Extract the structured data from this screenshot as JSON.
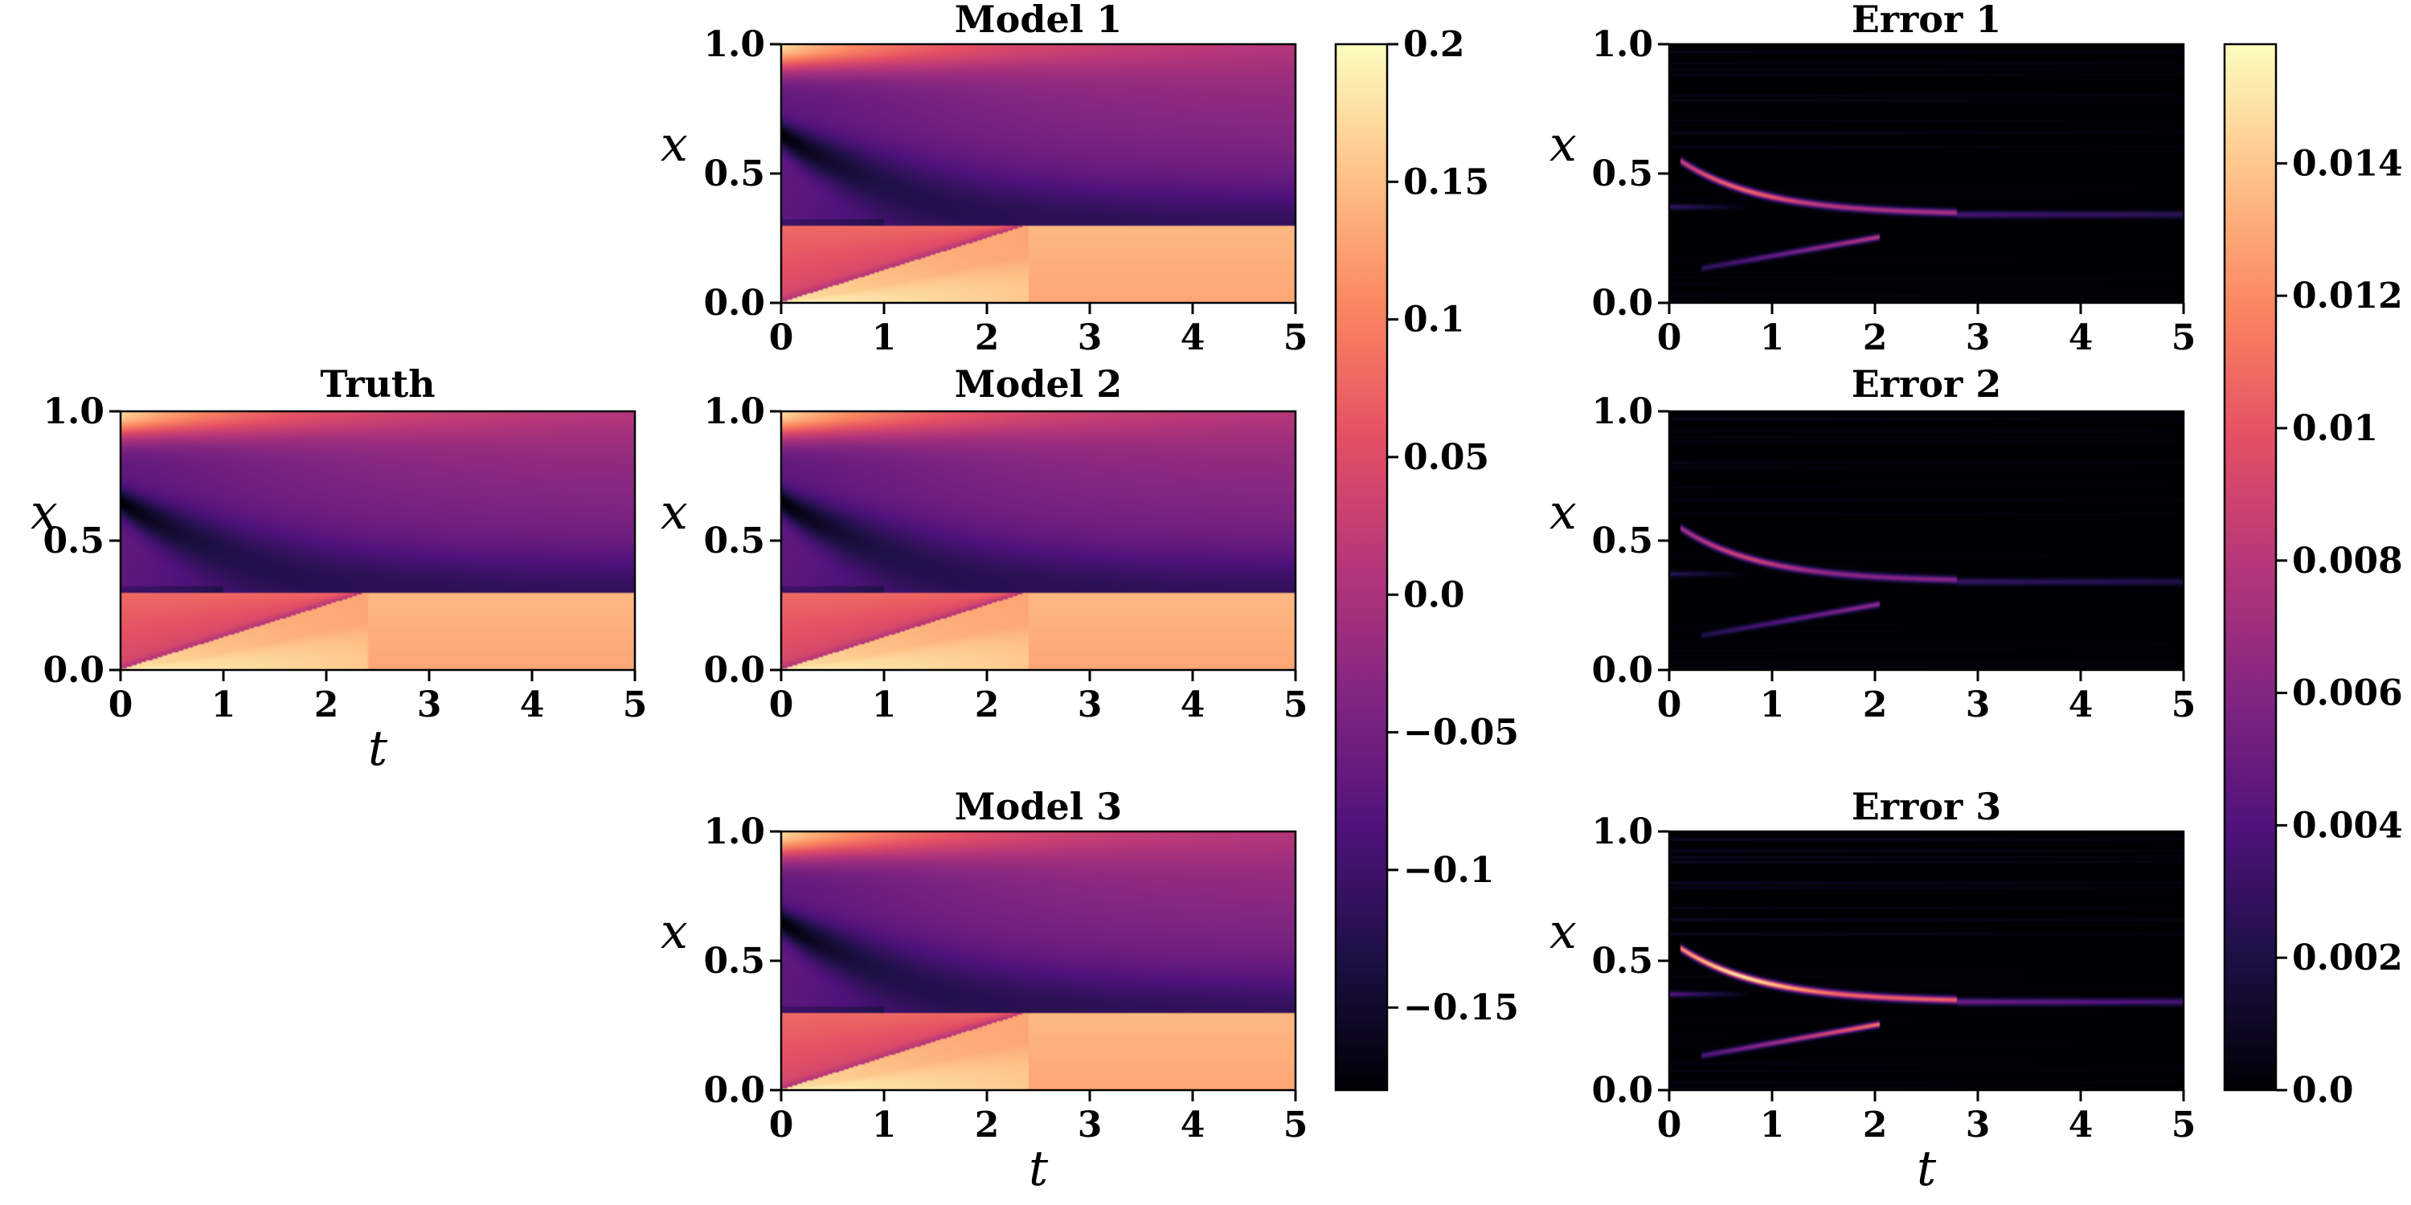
{
  "colors": {
    "magma": [
      "#000004",
      "#1c1044",
      "#4f127b",
      "#812581",
      "#b5367a",
      "#e55064",
      "#fb8761",
      "#fec287",
      "#fcfdbf"
    ]
  },
  "chart_data": {
    "type": "heatmap",
    "x_label": "t",
    "y_label": "x",
    "x_range": [
      0,
      5
    ],
    "y_range": [
      0.0,
      1.0
    ],
    "x_ticks": [
      "0",
      "1",
      "2",
      "3",
      "4",
      "5"
    ],
    "y_ticks": [
      "0.0",
      "0.5",
      "1.0"
    ],
    "colorbar_value": {
      "range": [
        -0.18,
        0.2
      ],
      "ticks": [
        0.2,
        0.15,
        0.1,
        0.05,
        0.0,
        -0.05,
        -0.1,
        -0.15
      ],
      "tick_labels": [
        "0.2",
        "0.15",
        "0.1",
        "0.05",
        "0.0",
        "−0.05",
        "−0.1",
        "−0.15"
      ]
    },
    "colorbar_error": {
      "range": [
        0.0,
        0.0158
      ],
      "ticks": [
        0.014,
        0.012,
        0.01,
        0.008,
        0.006,
        0.004,
        0.002,
        0.0
      ],
      "tick_labels": [
        "0.014",
        "0.012",
        "0.01",
        "0.008",
        "0.006",
        "0.004",
        "0.002",
        "0.0"
      ]
    },
    "field_panels": [
      {
        "id": "truth",
        "title": "Truth"
      },
      {
        "id": "model-1",
        "title": "Model 1"
      },
      {
        "id": "model-2",
        "title": "Model 2"
      },
      {
        "id": "model-3",
        "title": "Model 3"
      }
    ],
    "error_panels": [
      {
        "id": "error-1",
        "title": "Error 1",
        "peak": 0.011
      },
      {
        "id": "error-2",
        "title": "Error 2",
        "peak": 0.009
      },
      {
        "id": "error-3",
        "title": "Error 3",
        "peak": 0.0155
      }
    ],
    "field_features": {
      "shock_x": 0.3,
      "shock_settle_t": 2.4,
      "trough_start_x": 0.65,
      "max_value": 0.2,
      "min_value": -0.18
    }
  }
}
